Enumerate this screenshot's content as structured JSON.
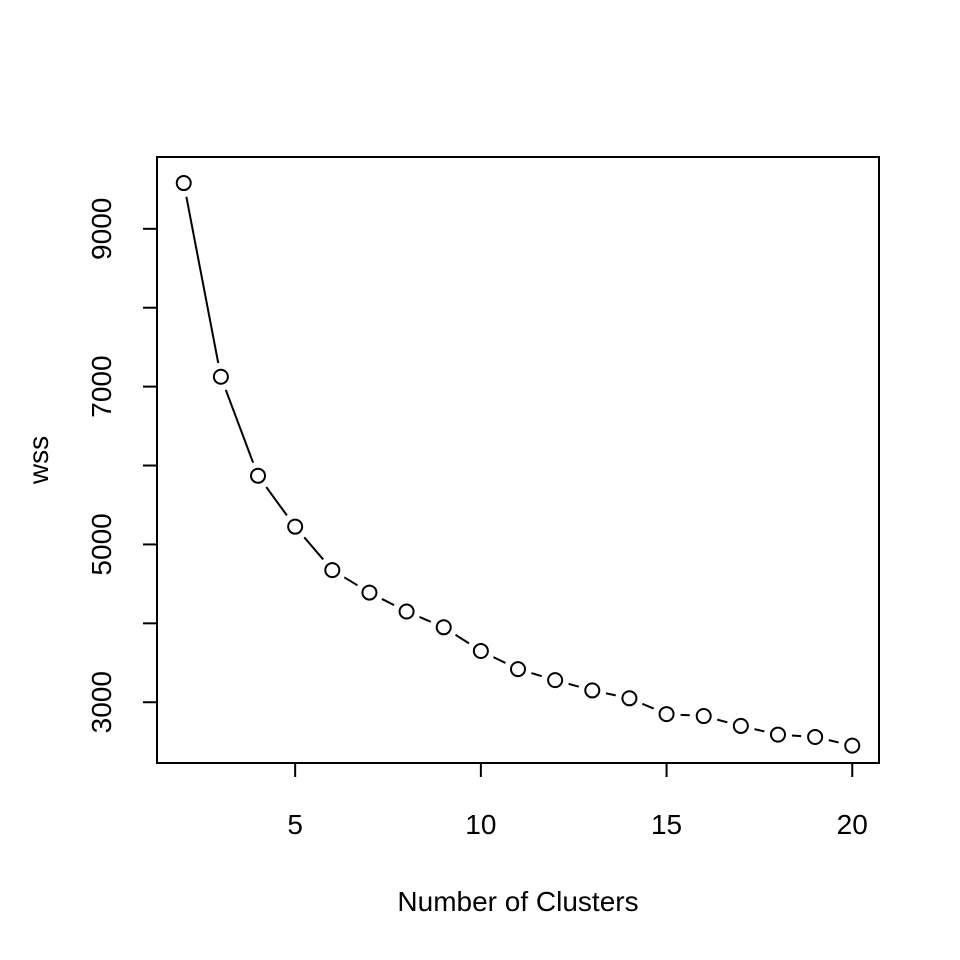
{
  "chart_data": {
    "type": "line",
    "title": "",
    "xlabel": "Number of Clusters",
    "ylabel": "wss",
    "xlim": [
      1.28,
      20.72
    ],
    "ylim": [
      2230,
      9910
    ],
    "x_ticks": [
      5,
      10,
      15,
      20
    ],
    "x_ticks_unlabeled": [],
    "y_ticks": [
      3000,
      4000,
      5000,
      6000,
      7000,
      8000,
      9000
    ],
    "y_tick_labels": [
      "3000",
      "",
      "5000",
      "",
      "7000",
      "",
      "9000"
    ],
    "grid": false,
    "legend": "none",
    "series": [
      {
        "marker": "open-circle",
        "line_style": "both",
        "color": "#000000",
        "x": [
          2,
          3,
          4,
          5,
          6,
          7,
          8,
          9,
          10,
          11,
          12,
          13,
          14,
          15,
          16,
          17,
          18,
          19,
          20
        ],
        "y": [
          9580,
          7125,
          5870,
          5225,
          4675,
          4390,
          4150,
          3950,
          3650,
          3420,
          3280,
          3150,
          3050,
          2850,
          2825,
          2700,
          2590,
          2560,
          2450
        ]
      }
    ]
  }
}
